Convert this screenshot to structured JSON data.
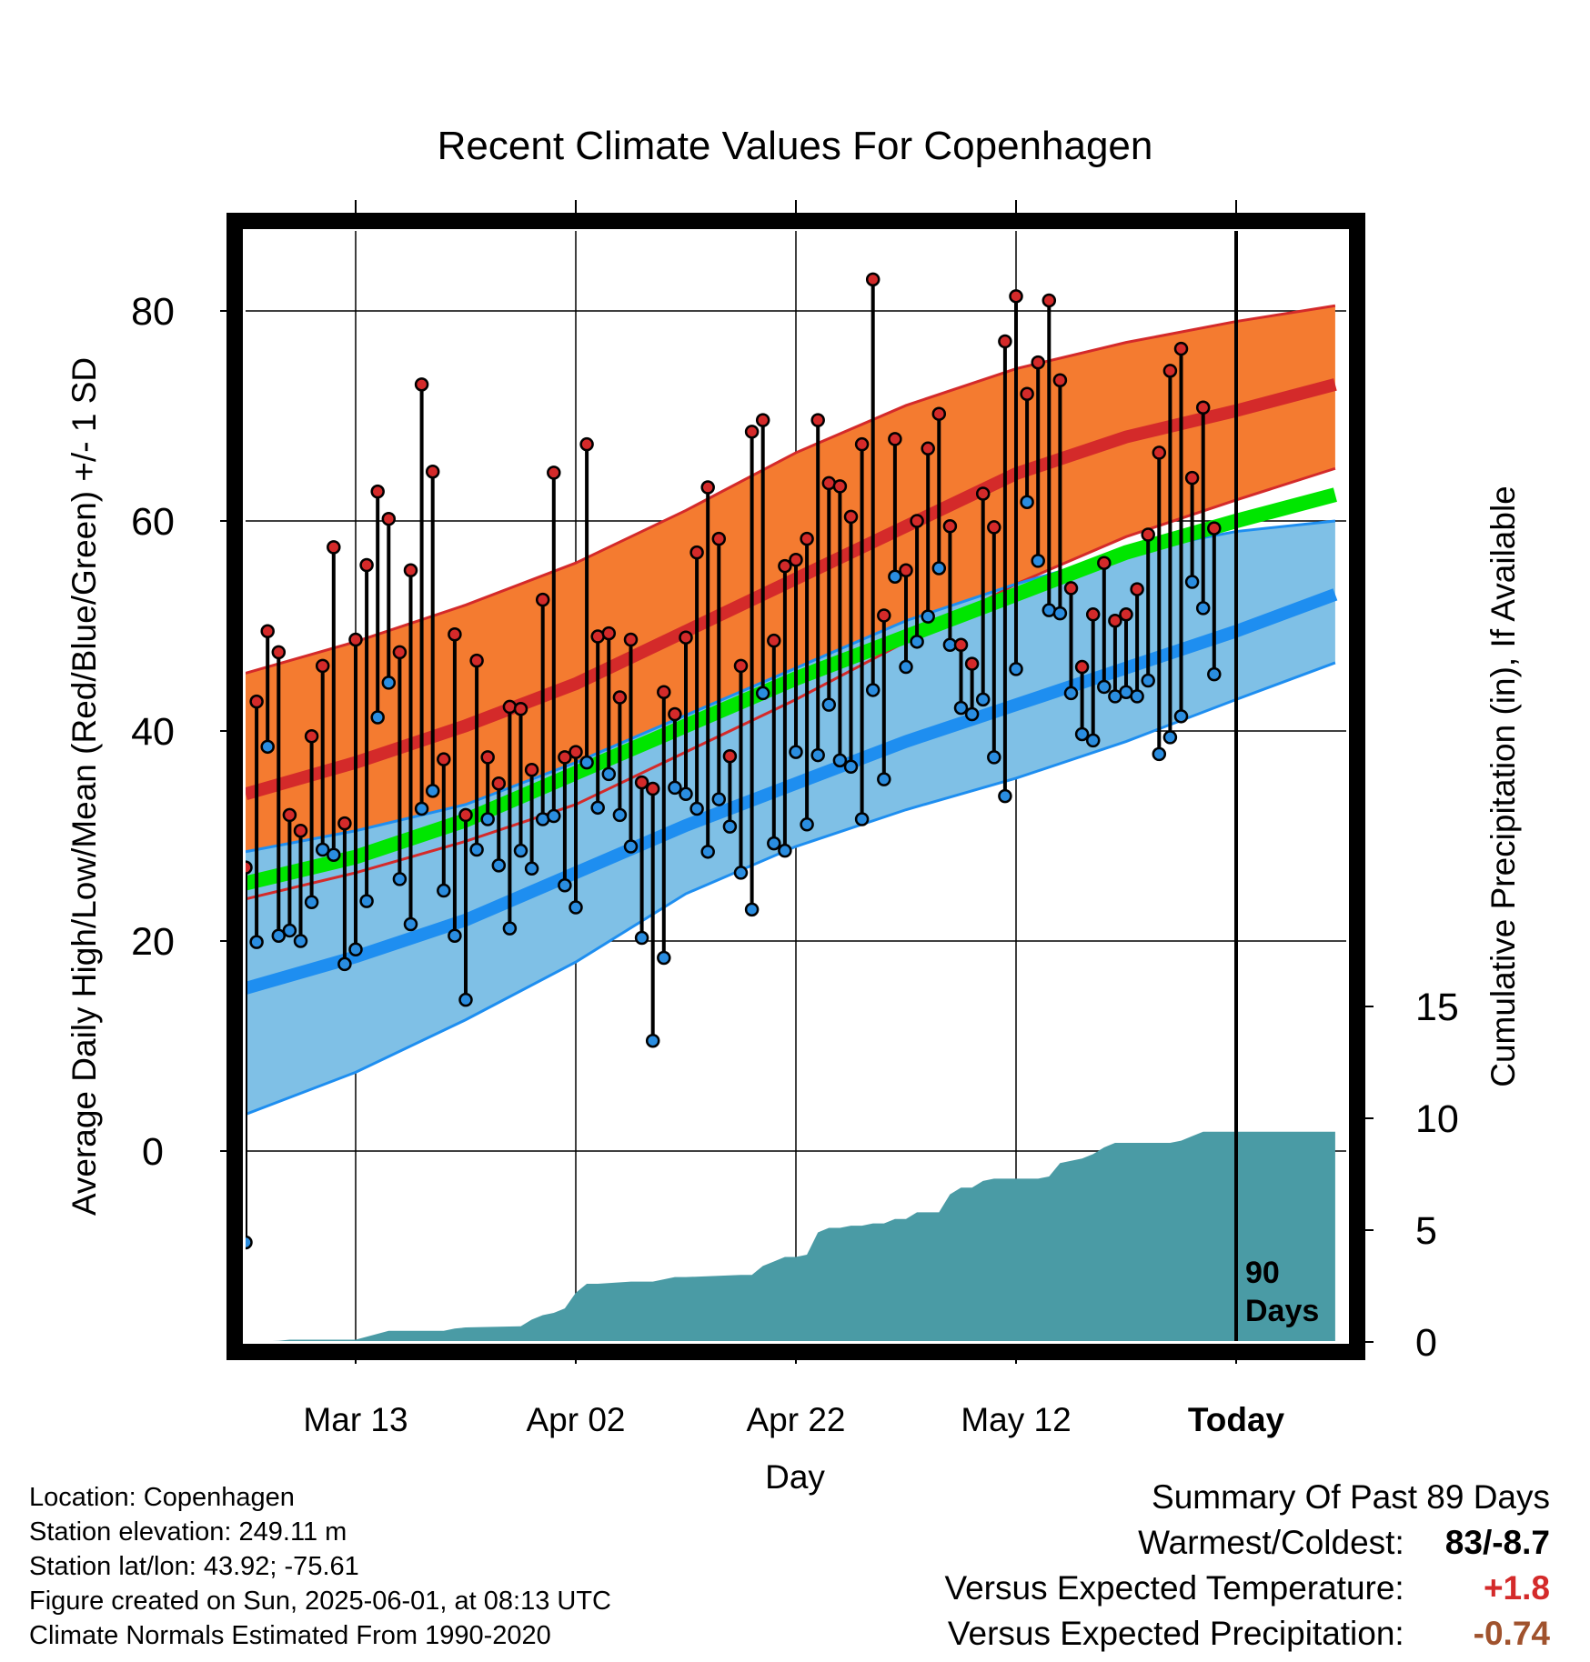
{
  "chart_data": {
    "type": "line",
    "title": "Recent Climate Values For Copenhagen",
    "xlabel": "Day",
    "ylabel": "Average Daily High/Low/Mean (Red/Blue/Green) +/- 1 SD",
    "y2label": "Cumulative Precipitation (in), If Available",
    "x_tick_labels": [
      "Mar 13",
      "Apr 02",
      "Apr 22",
      "May 12",
      "Today"
    ],
    "x_tick_days": [
      10,
      30,
      50,
      70,
      90
    ],
    "ylim": [
      -18,
      88
    ],
    "y_ticks": [
      0,
      20,
      40,
      60,
      80
    ],
    "y2lim": [
      0,
      36
    ],
    "y2_ticks": [
      0,
      5,
      10,
      15
    ],
    "today_marker_label": [
      "90",
      "Days"
    ],
    "colors": {
      "high_band": "#f47b30",
      "high_mean": "#d42a2a",
      "low_band": "#7fc0e6",
      "low_mean": "#1e8ef0",
      "mean": "#00e600",
      "precip": "#4a9ba5",
      "high_marker": "#d42a2a",
      "low_marker": "#2a8de0",
      "positive_anomaly": "#d42a2a",
      "negative_anomaly": "#a0522d"
    },
    "normals": {
      "days": [
        0,
        10,
        20,
        30,
        40,
        50,
        60,
        70,
        80,
        90,
        99
      ],
      "high_mean": [
        34,
        37,
        40.5,
        44.5,
        49.5,
        54.5,
        59.5,
        64.5,
        68,
        70.5,
        73
      ],
      "high_upper": [
        45.5,
        48.5,
        52,
        56,
        61,
        66.5,
        71,
        74.5,
        77,
        79,
        80.5
      ],
      "high_lower": [
        24,
        26.5,
        29.5,
        33,
        38,
        43,
        48.5,
        54,
        58.5,
        62,
        65
      ],
      "low_mean": [
        15.5,
        18.5,
        22,
        26.5,
        31,
        35,
        39,
        42.5,
        46,
        49.5,
        53
      ],
      "low_upper": [
        28.5,
        30.5,
        33,
        37,
        41.5,
        46,
        50.5,
        54,
        57,
        59,
        60
      ],
      "low_lower": [
        3.5,
        7.5,
        12.5,
        18,
        24.5,
        29,
        32.5,
        35.5,
        39,
        43,
        46.5
      ],
      "mean": [
        25.5,
        28,
        31.5,
        36,
        40.5,
        45,
        49,
        53,
        57,
        60,
        62.5
      ]
    },
    "series": [
      {
        "name": "Daily High",
        "days": [
          0,
          1,
          2,
          3,
          4,
          5,
          6,
          7,
          8,
          9,
          10,
          11,
          12,
          13,
          14,
          15,
          16,
          17,
          18,
          19,
          20,
          21,
          22,
          23,
          24,
          25,
          26,
          27,
          28,
          29,
          30,
          31,
          32,
          33,
          34,
          35,
          36,
          37,
          38,
          39,
          40,
          41,
          42,
          43,
          44,
          45,
          46,
          47,
          48,
          49,
          50,
          51,
          52,
          53,
          54,
          55,
          56,
          57,
          58,
          59,
          60,
          61,
          62,
          63,
          64,
          65,
          66,
          67,
          68,
          69,
          70,
          71,
          72,
          73,
          74,
          75,
          76,
          77,
          78,
          79,
          80,
          81,
          82,
          83,
          84,
          85,
          86,
          87,
          88
        ],
        "values": [
          27,
          42.8,
          49.5,
          47.5,
          32,
          30.5,
          39.5,
          46.2,
          57.5,
          31.2,
          48.7,
          55.8,
          62.8,
          60.2,
          47.5,
          55.3,
          73,
          64.7,
          37.3,
          49.2,
          32,
          46.7,
          37.5,
          35,
          42.3,
          42.1,
          36.3,
          52.5,
          64.6,
          37.5,
          38,
          67.3,
          49,
          49.3,
          43.2,
          48.7,
          35.1,
          34.5,
          43.7,
          41.6,
          48.9,
          57,
          63.2,
          58.3,
          37.6,
          46.2,
          68.5,
          69.6,
          48.6,
          55.7,
          56.3,
          58.3,
          69.6,
          63.6,
          63.3,
          60.4,
          67.3,
          83,
          51,
          67.8,
          55.3,
          60,
          66.9,
          70.2,
          59.5,
          48.2,
          46.4,
          62.6,
          59.4,
          77.1,
          81.4,
          72.1,
          75.1,
          81,
          73.4,
          53.6,
          46.1,
          51.1,
          56,
          50.5,
          51.1,
          53.5,
          58.7,
          66.5,
          74.3,
          76.4,
          64.1,
          70.8,
          59.3
        ]
      },
      {
        "name": "Daily Low",
        "days": [
          0,
          1,
          2,
          3,
          4,
          5,
          6,
          7,
          8,
          9,
          10,
          11,
          12,
          13,
          14,
          15,
          16,
          17,
          18,
          19,
          20,
          21,
          22,
          23,
          24,
          25,
          26,
          27,
          28,
          29,
          30,
          31,
          32,
          33,
          34,
          35,
          36,
          37,
          38,
          39,
          40,
          41,
          42,
          43,
          44,
          45,
          46,
          47,
          48,
          49,
          50,
          51,
          52,
          53,
          54,
          55,
          56,
          57,
          58,
          59,
          60,
          61,
          62,
          63,
          64,
          65,
          66,
          67,
          68,
          69,
          70,
          71,
          72,
          73,
          74,
          75,
          76,
          77,
          78,
          79,
          80,
          81,
          82,
          83,
          84,
          85,
          86,
          87,
          88
        ],
        "values": [
          -8.7,
          19.9,
          38.5,
          20.5,
          21,
          20,
          23.7,
          28.7,
          28.2,
          17.8,
          19.2,
          23.8,
          41.3,
          44.6,
          25.9,
          21.6,
          32.6,
          34.3,
          24.8,
          20.5,
          14.4,
          28.7,
          31.6,
          27.2,
          21.2,
          28.6,
          26.9,
          31.6,
          31.9,
          25.3,
          23.2,
          37,
          32.7,
          35.9,
          32,
          29,
          20.3,
          10.5,
          18.4,
          34.6,
          34,
          32.6,
          28.5,
          33.5,
          30.9,
          26.5,
          23,
          43.6,
          29.3,
          28.6,
          38,
          31.1,
          37.7,
          42.5,
          37.2,
          36.6,
          31.6,
          43.9,
          35.4,
          54.7,
          46.1,
          48.5,
          50.9,
          55.5,
          48.2,
          42.2,
          41.6,
          43,
          37.5,
          33.8,
          45.9,
          61.8,
          56.2,
          51.5,
          51.2,
          43.6,
          39.7,
          39.1,
          44.2,
          43.3,
          43.7,
          43.3,
          44.8,
          37.8,
          39.4,
          41.4,
          54.2,
          51.7,
          45.4
        ]
      },
      {
        "name": "Cumulative Precipitation",
        "days": [
          0,
          3,
          4,
          10,
          13,
          18,
          19,
          20,
          25,
          26,
          27,
          28,
          29,
          30,
          31,
          32,
          35,
          37,
          38,
          39,
          40,
          45,
          46,
          47,
          48,
          49,
          50,
          51,
          52,
          53,
          54,
          55,
          56,
          57,
          58,
          59,
          60,
          61,
          63,
          64,
          65,
          66,
          67,
          68,
          72,
          73,
          74,
          75,
          76,
          77,
          78,
          79,
          80,
          81,
          82,
          83,
          84,
          85,
          86,
          87,
          88,
          89,
          99
        ],
        "values": [
          0,
          0.05,
          0.1,
          0.1,
          0.5,
          0.5,
          0.6,
          0.65,
          0.7,
          1,
          1.2,
          1.3,
          1.5,
          2.2,
          2.6,
          2.6,
          2.7,
          2.7,
          2.8,
          2.9,
          2.9,
          3,
          3,
          3.4,
          3.6,
          3.8,
          3.8,
          3.9,
          4.9,
          5.1,
          5.1,
          5.2,
          5.2,
          5.3,
          5.3,
          5.5,
          5.5,
          5.8,
          5.8,
          6.6,
          6.9,
          6.9,
          7.2,
          7.3,
          7.3,
          7.4,
          8,
          8.1,
          8.2,
          8.4,
          8.7,
          8.9,
          8.9,
          8.9,
          8.9,
          8.9,
          8.9,
          9,
          9.2,
          9.4,
          9.4,
          9.4,
          9.4
        ]
      }
    ]
  },
  "info": {
    "location": "Location: Copenhagen",
    "elevation": "Station elevation: 249.11 m",
    "latlon": "Station lat/lon: 43.92; -75.61",
    "created": "Figure created on Sun, 2025-06-01, at 08:13 UTC",
    "normals": "Climate Normals Estimated From 1990-2020"
  },
  "summary": {
    "title": "Summary Of Past 89 Days",
    "warmest_coldest_label": "Warmest/Coldest:",
    "warmest_coldest_value": "83/-8.7",
    "temp_label": "Versus Expected Temperature:",
    "temp_value": "+1.8",
    "precip_label": "Versus Expected Precipitation:",
    "precip_value": "-0.74"
  }
}
